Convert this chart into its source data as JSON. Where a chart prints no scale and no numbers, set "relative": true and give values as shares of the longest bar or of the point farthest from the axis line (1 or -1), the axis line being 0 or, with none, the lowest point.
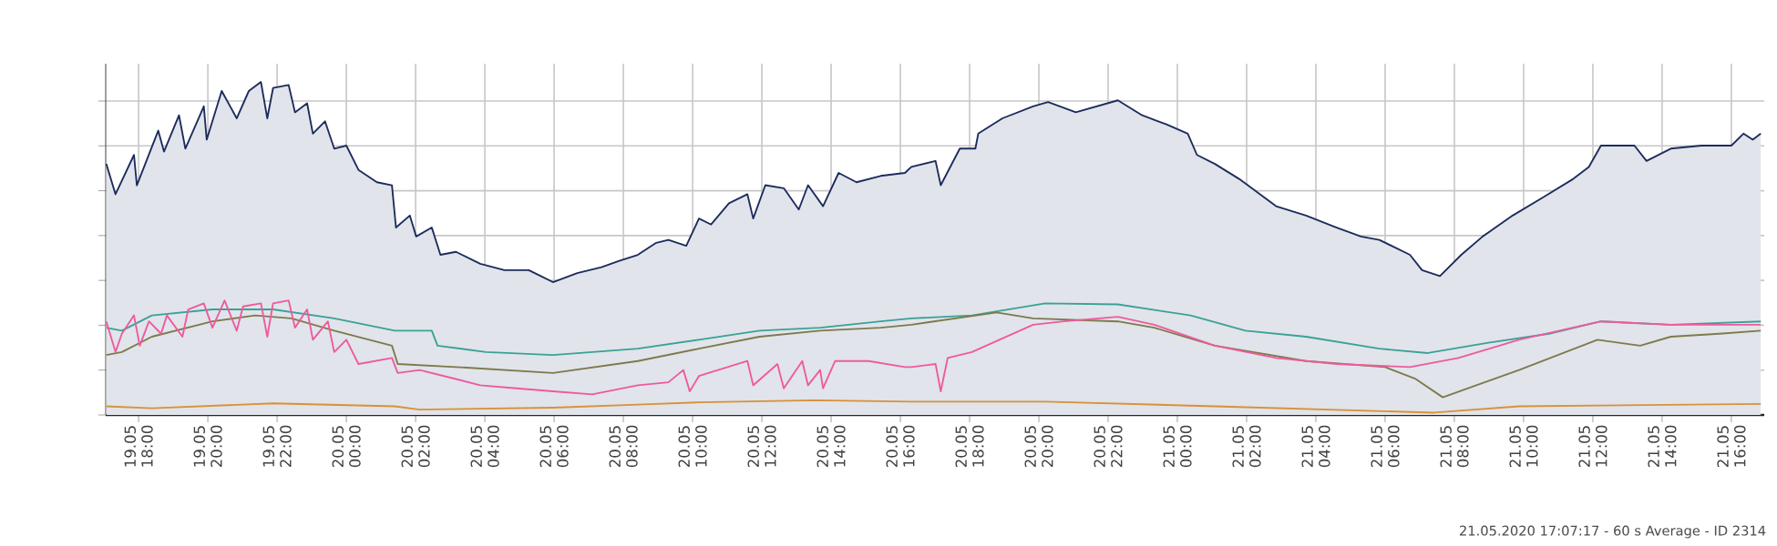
{
  "chart_data": {
    "type": "line",
    "relative": true,
    "grid": true,
    "tick_labels": "x",
    "marker": "none",
    "xlim": [
      "2020-05-19T17:03",
      "2020-05-21T16:57"
    ],
    "xticks": [
      {
        "value": "2020-05-19T18:00",
        "label": "19.05 18:00"
      },
      {
        "value": "2020-05-19T20:00",
        "label": "19.05 20:00"
      },
      {
        "value": "2020-05-19T22:00",
        "label": "19.05 22:00"
      },
      {
        "value": "2020-05-20T00:00",
        "label": "20.05 00:00"
      },
      {
        "value": "2020-05-20T02:00",
        "label": "20.05 02:00"
      },
      {
        "value": "2020-05-20T04:00",
        "label": "20.05 04:00"
      },
      {
        "value": "2020-05-20T06:00",
        "label": "20.05 06:00"
      },
      {
        "value": "2020-05-20T08:00",
        "label": "20.05 08:00"
      },
      {
        "value": "2020-05-20T10:00",
        "label": "20.05 10:00"
      },
      {
        "value": "2020-05-20T12:00",
        "label": "20.05 12:00"
      },
      {
        "value": "2020-05-20T14:00",
        "label": "20.05 14:00"
      },
      {
        "value": "2020-05-20T16:00",
        "label": "20.05 16:00"
      },
      {
        "value": "2020-05-20T18:00",
        "label": "20.05 18:00"
      },
      {
        "value": "2020-05-20T20:00",
        "label": "20.05 20:00"
      },
      {
        "value": "2020-05-20T22:00",
        "label": "20.05 22:00"
      },
      {
        "value": "2020-05-21T00:00",
        "label": "21.05 00:00"
      },
      {
        "value": "2020-05-21T02:00",
        "label": "21.05 02:00"
      },
      {
        "value": "2020-05-21T04:00",
        "label": "21.05 04:00"
      },
      {
        "value": "2020-05-21T06:00",
        "label": "21.05 06:00"
      },
      {
        "value": "2020-05-21T08:00",
        "label": "21.05 08:00"
      },
      {
        "value": "2020-05-21T10:00",
        "label": "21.05 10:00"
      },
      {
        "value": "2020-05-21T12:00",
        "label": "21.05 12:00"
      },
      {
        "value": "2020-05-21T14:00",
        "label": "21.05 14:00"
      },
      {
        "value": "2020-05-21T16:00",
        "label": "21.05 16:00"
      }
    ],
    "annotations": [
      "21.05.2020 17:07:17 - 60 s Average - ID 2314"
    ],
    "series": [
      {
        "type": "area",
        "color": "#1c2c5c",
        "x": [
          "2020-05-19T17:04",
          "2020-05-19T17:20",
          "2020-05-19T17:52",
          "2020-05-19T17:57",
          "2020-05-19T18:34",
          "2020-05-19T18:44",
          "2020-05-19T19:10",
          "2020-05-19T19:21",
          "2020-05-19T19:53",
          "2020-05-19T19:58",
          "2020-05-19T20:24",
          "2020-05-19T20:50",
          "2020-05-19T21:11",
          "2020-05-19T21:32",
          "2020-05-19T21:43",
          "2020-05-19T21:53",
          "2020-05-19T22:20",
          "2020-05-19T22:31",
          "2020-05-19T22:52",
          "2020-05-19T23:02",
          "2020-05-19T23:23",
          "2020-05-19T23:39",
          "2020-05-20T00:00",
          "2020-05-20T00:21",
          "2020-05-20T00:53",
          "2020-05-20T01:19",
          "2020-05-20T01:26",
          "2020-05-20T01:50",
          "2020-05-20T02:01",
          "2020-05-20T02:28",
          "2020-05-20T02:43",
          "2020-05-20T03:10",
          "2020-05-20T03:52",
          "2020-05-20T04:34",
          "2020-05-20T05:16",
          "2020-05-20T05:37",
          "2020-05-20T05:58",
          "2020-05-20T06:40",
          "2020-05-20T07:22",
          "2020-05-20T07:53",
          "2020-05-20T08:25",
          "2020-05-20T08:57",
          "2020-05-20T09:18",
          "2020-05-20T09:49",
          "2020-05-20T10:11",
          "2020-05-20T10:32",
          "2020-05-20T11:03",
          "2020-05-20T11:35",
          "2020-05-20T11:45",
          "2020-05-20T12:06",
          "2020-05-20T12:38",
          "2020-05-20T13:04",
          "2020-05-20T13:20",
          "2020-05-20T13:46",
          "2020-05-20T14:13",
          "2020-05-20T14:44",
          "2020-05-20T15:26",
          "2020-05-20T16:08",
          "2020-05-20T16:19",
          "2020-05-20T17:01",
          "2020-05-20T17:10",
          "2020-05-20T17:43",
          "2020-05-20T18:10",
          "2020-05-20T18:15",
          "2020-05-20T18:57",
          "2020-05-20T19:50",
          "2020-05-20T20:16",
          "2020-05-20T21:04",
          "2020-05-20T22:17",
          "2020-05-20T22:59",
          "2020-05-20T23:41",
          "2020-05-21T00:18",
          "2020-05-21T00:34",
          "2020-05-21T01:05",
          "2020-05-21T01:47",
          "2020-05-21T02:51",
          "2020-05-21T03:43",
          "2020-05-21T04:36",
          "2020-05-21T05:18",
          "2020-05-21T05:50",
          "2020-05-21T06:43",
          "2020-05-21T07:04",
          "2020-05-21T07:35",
          "2020-05-21T08:12",
          "2020-05-21T08:49",
          "2020-05-21T09:41",
          "2020-05-21T10:34",
          "2020-05-21T11:26",
          "2020-05-21T11:53",
          "2020-05-21T12:14",
          "2020-05-21T13:12",
          "2020-05-21T13:33",
          "2020-05-21T14:15",
          "2020-05-21T15:08",
          "2020-05-21T16:00",
          "2020-05-21T16:21",
          "2020-05-21T16:37",
          "2020-05-21T16:51"
        ],
        "values": [
          0.754,
          0.663,
          0.781,
          0.69,
          0.854,
          0.791,
          0.9,
          0.8,
          0.927,
          0.827,
          0.973,
          0.891,
          0.973,
          1.0,
          0.891,
          0.982,
          0.991,
          0.909,
          0.936,
          0.845,
          0.882,
          0.8,
          0.809,
          0.736,
          0.699,
          0.69,
          0.563,
          0.599,
          0.536,
          0.563,
          0.481,
          0.49,
          0.454,
          0.435,
          0.435,
          0.417,
          0.399,
          0.426,
          0.444,
          0.463,
          0.481,
          0.517,
          0.526,
          0.508,
          0.59,
          0.572,
          0.636,
          0.663,
          0.59,
          0.69,
          0.681,
          0.617,
          0.69,
          0.627,
          0.727,
          0.699,
          0.718,
          0.727,
          0.745,
          0.763,
          0.69,
          0.8,
          0.8,
          0.845,
          0.891,
          0.927,
          0.94,
          0.909,
          0.945,
          0.9,
          0.873,
          0.845,
          0.781,
          0.754,
          0.709,
          0.627,
          0.599,
          0.563,
          0.536,
          0.526,
          0.481,
          0.435,
          0.417,
          0.481,
          0.536,
          0.599,
          0.654,
          0.709,
          0.745,
          0.809,
          0.809,
          0.763,
          0.8,
          0.809,
          0.809,
          0.845,
          0.827,
          0.845
        ]
      },
      {
        "color": "#3aa197",
        "x": [
          "2020-05-19T17:04",
          "2020-05-19T17:31",
          "2020-05-19T18:23",
          "2020-05-19T20:08",
          "2020-05-19T21:53",
          "2020-05-19T23:39",
          "2020-05-20T01:24",
          "2020-05-20T02:28",
          "2020-05-20T02:38",
          "2020-05-20T04:02",
          "2020-05-20T05:58",
          "2020-05-20T08:25",
          "2020-05-20T10:11",
          "2020-05-20T11:56",
          "2020-05-20T13:41",
          "2020-05-20T15:26",
          "2020-05-20T16:19",
          "2020-05-20T18:04",
          "2020-05-20T20:11",
          "2020-05-20T22:17",
          "2020-05-21T00:23",
          "2020-05-21T01:58",
          "2020-05-21T03:43",
          "2020-05-21T05:50",
          "2020-05-21T07:14",
          "2020-05-21T08:59",
          "2020-05-21T10:44",
          "2020-05-21T12:14",
          "2020-05-21T14:15",
          "2020-05-21T16:51"
        ],
        "values": [
          0.262,
          0.253,
          0.299,
          0.317,
          0.317,
          0.29,
          0.253,
          0.253,
          0.208,
          0.189,
          0.18,
          0.199,
          0.226,
          0.253,
          0.262,
          0.281,
          0.29,
          0.299,
          0.335,
          0.332,
          0.299,
          0.253,
          0.235,
          0.199,
          0.186,
          0.217,
          0.244,
          0.281,
          0.271,
          0.281
        ]
      },
      {
        "color": "#7d7a4c",
        "x": [
          "2020-05-19T17:04",
          "2020-05-19T17:31",
          "2020-05-19T18:23",
          "2020-05-19T20:08",
          "2020-05-19T21:22",
          "2020-05-19T22:25",
          "2020-05-19T23:39",
          "2020-05-20T01:19",
          "2020-05-20T01:29",
          "2020-05-20T03:10",
          "2020-05-20T05:58",
          "2020-05-20T08:25",
          "2020-05-20T10:11",
          "2020-05-20T11:56",
          "2020-05-20T13:41",
          "2020-05-20T15:26",
          "2020-05-20T16:19",
          "2020-05-20T18:47",
          "2020-05-20T19:50",
          "2020-05-20T22:17",
          "2020-05-20T23:20",
          "2020-05-21T01:05",
          "2020-05-21T03:43",
          "2020-05-21T06:00",
          "2020-05-21T06:53",
          "2020-05-21T07:40",
          "2020-05-21T08:38",
          "2020-05-21T09:52",
          "2020-05-21T12:08",
          "2020-05-21T13:22",
          "2020-05-21T14:15",
          "2020-05-21T15:39",
          "2020-05-21T16:51"
        ],
        "values": [
          0.18,
          0.189,
          0.235,
          0.281,
          0.299,
          0.29,
          0.253,
          0.208,
          0.153,
          0.144,
          0.126,
          0.162,
          0.199,
          0.235,
          0.253,
          0.262,
          0.271,
          0.308,
          0.29,
          0.281,
          0.262,
          0.208,
          0.162,
          0.144,
          0.108,
          0.053,
          0.089,
          0.135,
          0.226,
          0.208,
          0.235,
          0.244,
          0.253
        ]
      },
      {
        "color": "#ee5a9e",
        "x": [
          "2020-05-19T17:04",
          "2020-05-19T17:20",
          "2020-05-19T17:31",
          "2020-05-19T17:52",
          "2020-05-19T18:02",
          "2020-05-19T18:18",
          "2020-05-19T18:39",
          "2020-05-19T18:49",
          "2020-05-19T19:16",
          "2020-05-19T19:26",
          "2020-05-19T19:53",
          "2020-05-19T20:08",
          "2020-05-19T20:29",
          "2020-05-19T20:50",
          "2020-05-19T21:01",
          "2020-05-19T21:32",
          "2020-05-19T21:43",
          "2020-05-19T21:53",
          "2020-05-19T22:20",
          "2020-05-19T22:31",
          "2020-05-19T22:52",
          "2020-05-19T23:02",
          "2020-05-19T23:28",
          "2020-05-19T23:39",
          "2020-05-20T00:00",
          "2020-05-20T00:21",
          "2020-05-20T01:19",
          "2020-05-20T01:29",
          "2020-05-20T02:07",
          "2020-05-20T03:10",
          "2020-05-20T03:52",
          "2020-05-20T04:55",
          "2020-05-20T05:58",
          "2020-05-20T07:06",
          "2020-05-20T08:25",
          "2020-05-20T09:18",
          "2020-05-20T09:44",
          "2020-05-20T09:55",
          "2020-05-20T10:11",
          "2020-05-20T11:35",
          "2020-05-20T11:45",
          "2020-05-20T12:27",
          "2020-05-20T12:38",
          "2020-05-20T13:10",
          "2020-05-20T13:20",
          "2020-05-20T13:41",
          "2020-05-20T13:46",
          "2020-05-20T14:07",
          "2020-05-20T15:05",
          "2020-05-20T16:08",
          "2020-05-20T16:19",
          "2020-05-20T17:01",
          "2020-05-20T17:10",
          "2020-05-20T17:22",
          "2020-05-20T18:04",
          "2020-05-20T19:50",
          "2020-05-20T20:43",
          "2020-05-20T22:17",
          "2020-05-20T23:20",
          "2020-05-21T01:05",
          "2020-05-21T02:51",
          "2020-05-21T04:36",
          "2020-05-21T06:43",
          "2020-05-21T08:07",
          "2020-05-21T09:52",
          "2020-05-21T12:14",
          "2020-05-21T14:15",
          "2020-05-21T16:51"
        ],
        "values": [
          0.281,
          0.189,
          0.244,
          0.299,
          0.208,
          0.281,
          0.244,
          0.299,
          0.235,
          0.317,
          0.335,
          0.262,
          0.344,
          0.253,
          0.326,
          0.335,
          0.235,
          0.335,
          0.344,
          0.262,
          0.317,
          0.226,
          0.281,
          0.189,
          0.226,
          0.153,
          0.171,
          0.126,
          0.135,
          0.108,
          0.089,
          0.08,
          0.071,
          0.062,
          0.089,
          0.098,
          0.135,
          0.071,
          0.117,
          0.162,
          0.089,
          0.153,
          0.08,
          0.162,
          0.089,
          0.135,
          0.08,
          0.162,
          0.162,
          0.144,
          0.144,
          0.153,
          0.071,
          0.171,
          0.189,
          0.271,
          0.281,
          0.295,
          0.271,
          0.208,
          0.171,
          0.153,
          0.144,
          0.171,
          0.226,
          0.281,
          0.271,
          0.271
        ]
      },
      {
        "color": "#d8913a",
        "x": [
          "2020-05-19T17:04",
          "2020-05-19T18:23",
          "2020-05-19T21:53",
          "2020-05-20T01:24",
          "2020-05-20T02:07",
          "2020-05-20T05:58",
          "2020-05-20T08:25",
          "2020-05-20T10:11",
          "2020-05-20T13:31",
          "2020-05-20T16:19",
          "2020-05-20T20:11",
          "2020-05-21T01:05",
          "2020-05-21T07:25",
          "2020-05-21T09:52",
          "2020-05-21T16:51"
        ],
        "values": [
          0.026,
          0.02,
          0.035,
          0.026,
          0.016,
          0.022,
          0.031,
          0.038,
          0.044,
          0.04,
          0.04,
          0.026,
          0.007,
          0.026,
          0.033
        ]
      }
    ]
  }
}
